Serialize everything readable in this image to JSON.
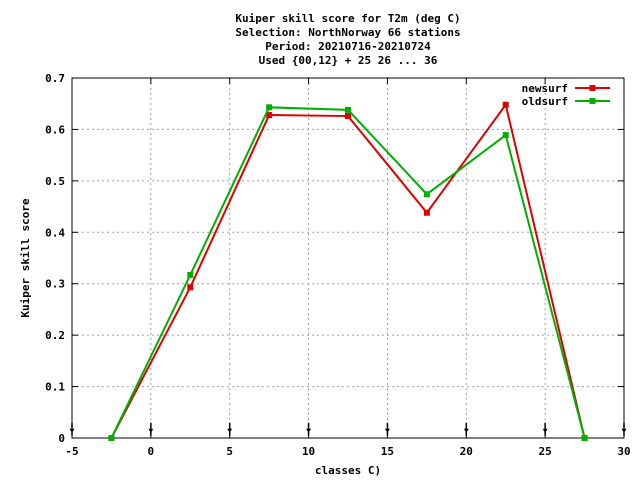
{
  "chart_data": {
    "type": "line",
    "title_lines": [
      "Kuiper skill score  for T2m (deg C)",
      "Selection: NorthNorway     66 stations",
      "Period: 20210716-20210724",
      "Used {00,12} + 25 26 ... 36"
    ],
    "xlabel": "classes C)",
    "ylabel": "Kuiper skill score",
    "xlim": [
      -5,
      30
    ],
    "ylim": [
      0,
      0.7
    ],
    "xticks": [
      -5,
      0,
      5,
      10,
      15,
      20,
      25,
      30
    ],
    "yticks": [
      0,
      0.1,
      0.2,
      0.3,
      0.4,
      0.5,
      0.6,
      0.7
    ],
    "ytick_labels": [
      "0",
      "0.1",
      "0.2",
      "0.3",
      "0.4",
      "0.5",
      "0.6",
      "0.7"
    ],
    "xtick_labels": [
      "-5",
      "0",
      "5",
      "10",
      "15",
      "20",
      "25",
      "30"
    ],
    "grid": true,
    "legend_position": "top-right",
    "class_markers": [
      -5,
      0,
      5,
      10,
      15,
      20,
      25,
      30
    ],
    "series": [
      {
        "name": "newsurf",
        "color": "#e00000",
        "x": [
          -2.5,
          2.5,
          7.5,
          12.5,
          17.5,
          22.5,
          27.5
        ],
        "y": [
          0.0,
          0.293,
          0.628,
          0.626,
          0.438,
          0.648,
          0.0
        ]
      },
      {
        "name": "oldsurf",
        "color": "#00b000",
        "x": [
          -2.5,
          2.5,
          7.5,
          12.5,
          17.5,
          22.5,
          27.5
        ],
        "y": [
          0.0,
          0.317,
          0.643,
          0.638,
          0.474,
          0.589,
          0.0
        ]
      }
    ]
  }
}
